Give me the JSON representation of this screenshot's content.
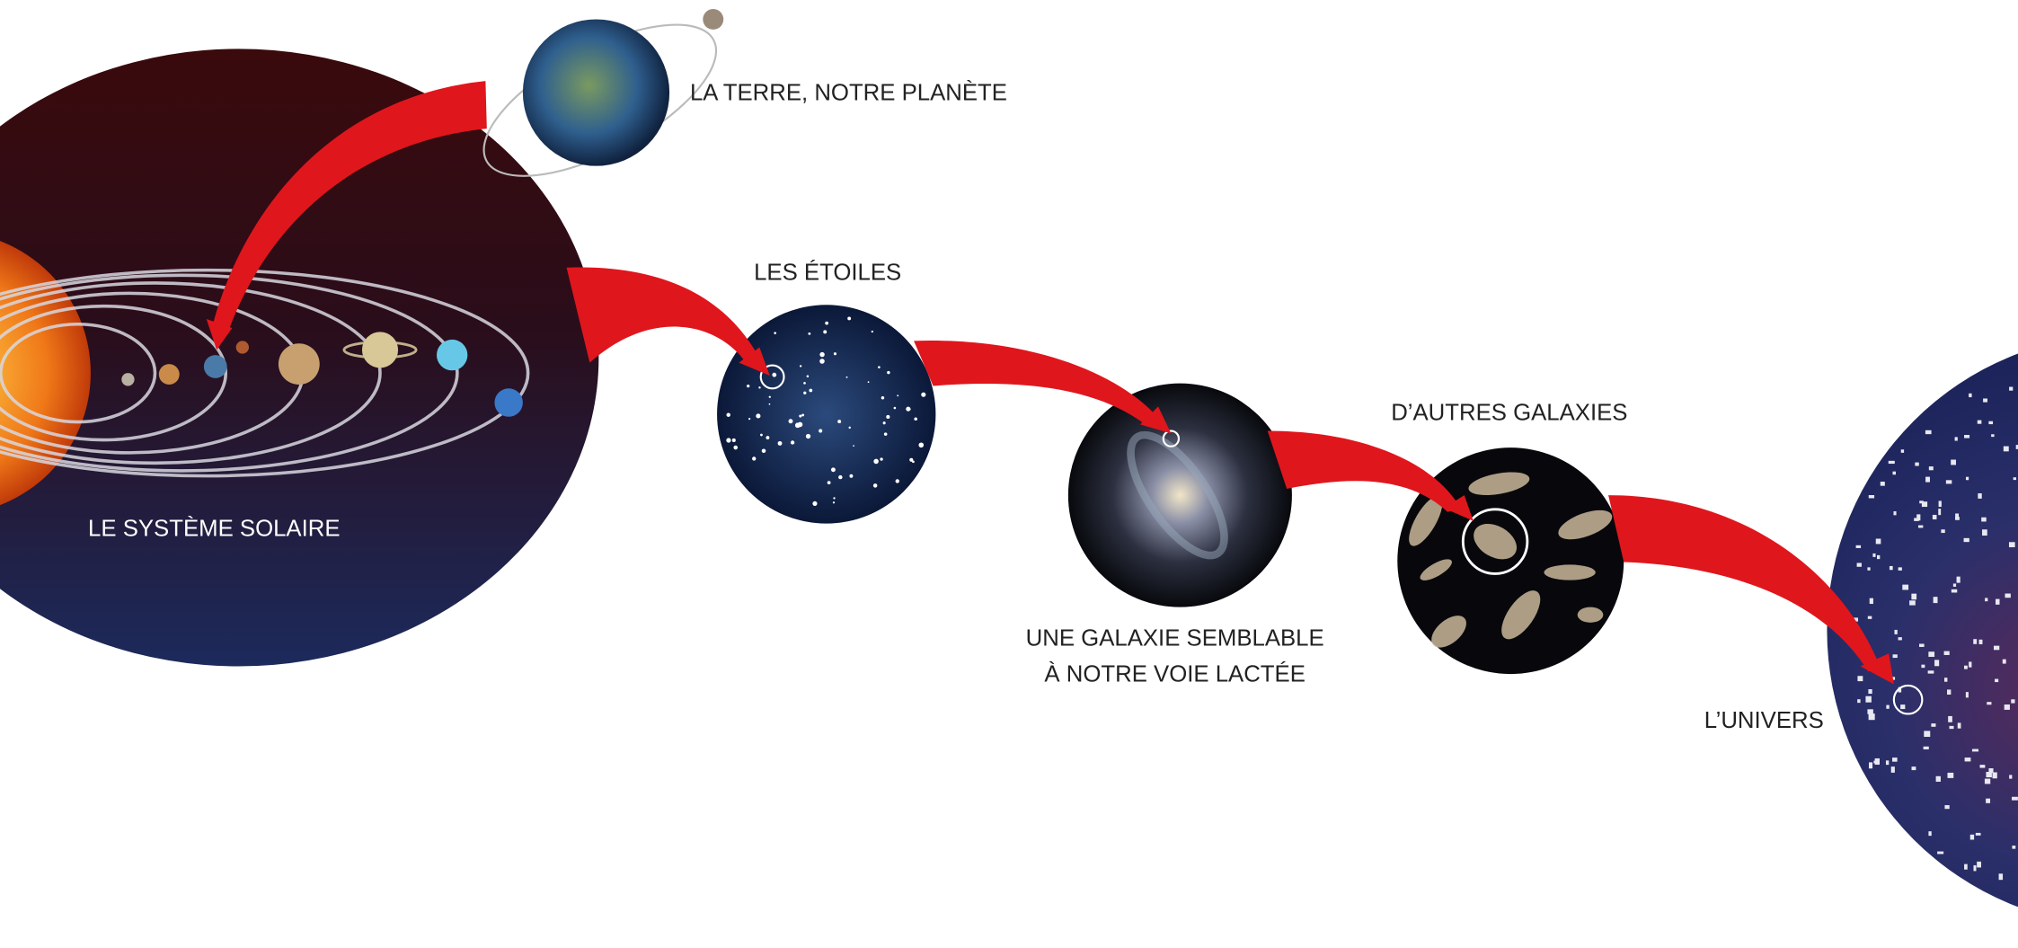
{
  "nodes": [
    {
      "label": "LA TERRE, NOTRE PLANÈTE"
    },
    {
      "label": "LE SYSTÈME SOLAIRE"
    },
    {
      "label": "LES ÉTOILES"
    },
    {
      "label": [
        "UNE GALAXIE SEMBLABLE",
        "À NOTRE VOIE LACTÉE"
      ]
    },
    {
      "label": "D’AUTRES GALAXIES"
    },
    {
      "label": "L’UNIVERS"
    }
  ]
}
